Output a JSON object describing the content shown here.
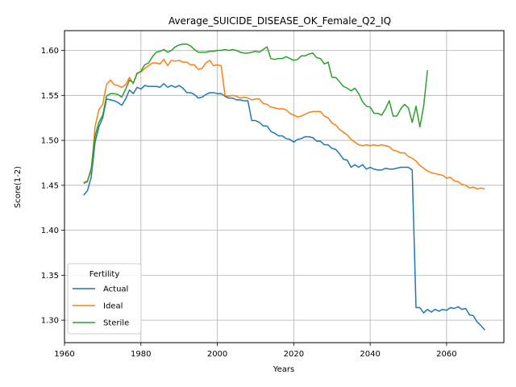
{
  "chart_data": {
    "type": "line",
    "title": "Average_SUICIDE_DISEASE_OK_Female_Q2_IQ",
    "xlabel": "Years",
    "ylabel": "Score(1-2)",
    "xlim": [
      1960,
      2075
    ],
    "ylim": [
      1.275,
      1.622
    ],
    "xticks": [
      1960,
      1980,
      2000,
      2020,
      2040,
      2060
    ],
    "yticks": [
      1.3,
      1.35,
      1.4,
      1.45,
      1.5,
      1.55,
      1.6
    ],
    "xtick_labels": [
      "1960",
      "1980",
      "2000",
      "2020",
      "2040",
      "2060"
    ],
    "ytick_labels": [
      "1.30",
      "1.35",
      "1.40",
      "1.45",
      "1.50",
      "1.55",
      "1.60"
    ],
    "grid": true,
    "legend": {
      "title": "Fertility",
      "placement": "lower-left"
    },
    "series": [
      {
        "name": "Actual",
        "color": "#1f77b4",
        "points": [
          [
            1965,
            1.439
          ],
          [
            1966,
            1.444
          ],
          [
            1967,
            1.459
          ],
          [
            1968,
            1.498
          ],
          [
            1969,
            1.515
          ],
          [
            1970,
            1.525
          ],
          [
            1971,
            1.546
          ],
          [
            1972,
            1.545
          ],
          [
            1973,
            1.544
          ],
          [
            1974,
            1.542
          ],
          [
            1975,
            1.539
          ],
          [
            1976,
            1.546
          ],
          [
            1977,
            1.556
          ],
          [
            1978,
            1.552
          ],
          [
            1979,
            1.559
          ],
          [
            1980,
            1.557
          ],
          [
            1981,
            1.561
          ],
          [
            1982,
            1.56
          ],
          [
            1983,
            1.56
          ],
          [
            1984,
            1.56
          ],
          [
            1985,
            1.559
          ],
          [
            1986,
            1.563
          ],
          [
            1987,
            1.559
          ],
          [
            1988,
            1.561
          ],
          [
            1989,
            1.559
          ],
          [
            1990,
            1.561
          ],
          [
            1991,
            1.558
          ],
          [
            1992,
            1.553
          ],
          [
            1993,
            1.553
          ],
          [
            1994,
            1.551
          ],
          [
            1995,
            1.547
          ],
          [
            1996,
            1.548
          ],
          [
            1997,
            1.551
          ],
          [
            1998,
            1.553
          ],
          [
            1999,
            1.553
          ],
          [
            2000,
            1.552
          ],
          [
            2001,
            1.552
          ],
          [
            2002,
            1.549
          ],
          [
            2003,
            1.547
          ],
          [
            2004,
            1.547
          ],
          [
            2005,
            1.545
          ],
          [
            2006,
            1.545
          ],
          [
            2007,
            1.544
          ],
          [
            2008,
            1.544
          ],
          [
            2009,
            1.522
          ],
          [
            2010,
            1.522
          ],
          [
            2011,
            1.52
          ],
          [
            2012,
            1.516
          ],
          [
            2013,
            1.516
          ],
          [
            2014,
            1.51
          ],
          [
            2015,
            1.508
          ],
          [
            2016,
            1.505
          ],
          [
            2017,
            1.505
          ],
          [
            2018,
            1.502
          ],
          [
            2019,
            1.501
          ],
          [
            2020,
            1.498
          ],
          [
            2021,
            1.501
          ],
          [
            2022,
            1.502
          ],
          [
            2023,
            1.504
          ],
          [
            2024,
            1.504
          ],
          [
            2025,
            1.503
          ],
          [
            2026,
            1.499
          ],
          [
            2027,
            1.499
          ],
          [
            2028,
            1.495
          ],
          [
            2029,
            1.495
          ],
          [
            2030,
            1.491
          ],
          [
            2031,
            1.49
          ],
          [
            2032,
            1.485
          ],
          [
            2033,
            1.479
          ],
          [
            2034,
            1.478
          ],
          [
            2035,
            1.47
          ],
          [
            2036,
            1.473
          ],
          [
            2037,
            1.47
          ],
          [
            2038,
            1.473
          ],
          [
            2039,
            1.468
          ],
          [
            2040,
            1.47
          ],
          [
            2041,
            1.468
          ],
          [
            2042,
            1.467
          ],
          [
            2043,
            1.467
          ],
          [
            2044,
            1.469
          ],
          [
            2045,
            1.468
          ],
          [
            2046,
            1.468
          ],
          [
            2047,
            1.469
          ],
          [
            2048,
            1.47
          ],
          [
            2049,
            1.47
          ],
          [
            2050,
            1.47
          ],
          [
            2051,
            1.467
          ],
          [
            2052,
            1.314
          ],
          [
            2053,
            1.314
          ],
          [
            2054,
            1.308
          ],
          [
            2055,
            1.312
          ],
          [
            2056,
            1.309
          ],
          [
            2057,
            1.312
          ],
          [
            2058,
            1.31
          ],
          [
            2059,
            1.312
          ],
          [
            2060,
            1.311
          ],
          [
            2061,
            1.314
          ],
          [
            2062,
            1.313
          ],
          [
            2063,
            1.315
          ],
          [
            2064,
            1.312
          ],
          [
            2065,
            1.313
          ],
          [
            2066,
            1.306
          ],
          [
            2067,
            1.305
          ],
          [
            2068,
            1.298
          ],
          [
            2069,
            1.294
          ],
          [
            2070,
            1.289
          ]
        ]
      },
      {
        "name": "Ideal",
        "color": "#ff7f0e",
        "points": [
          [
            1965,
            1.453
          ],
          [
            1966,
            1.455
          ],
          [
            1967,
            1.466
          ],
          [
            1968,
            1.515
          ],
          [
            1969,
            1.534
          ],
          [
            1970,
            1.54
          ],
          [
            1971,
            1.562
          ],
          [
            1972,
            1.567
          ],
          [
            1973,
            1.562
          ],
          [
            1974,
            1.561
          ],
          [
            1975,
            1.559
          ],
          [
            1976,
            1.562
          ],
          [
            1977,
            1.57
          ],
          [
            1978,
            1.563
          ],
          [
            1979,
            1.575
          ],
          [
            1980,
            1.576
          ],
          [
            1981,
            1.58
          ],
          [
            1982,
            1.583
          ],
          [
            1983,
            1.586
          ],
          [
            1984,
            1.586
          ],
          [
            1985,
            1.585
          ],
          [
            1986,
            1.59
          ],
          [
            1987,
            1.583
          ],
          [
            1988,
            1.589
          ],
          [
            1989,
            1.588
          ],
          [
            1990,
            1.589
          ],
          [
            1991,
            1.587
          ],
          [
            1992,
            1.587
          ],
          [
            1993,
            1.584
          ],
          [
            1994,
            1.584
          ],
          [
            1995,
            1.579
          ],
          [
            1996,
            1.58
          ],
          [
            1997,
            1.586
          ],
          [
            1998,
            1.589
          ],
          [
            1999,
            1.583
          ],
          [
            2000,
            1.584
          ],
          [
            2001,
            1.583
          ],
          [
            2002,
            1.55
          ],
          [
            2003,
            1.549
          ],
          [
            2004,
            1.55
          ],
          [
            2005,
            1.549
          ],
          [
            2006,
            1.547
          ],
          [
            2007,
            1.548
          ],
          [
            2008,
            1.547
          ],
          [
            2009,
            1.545
          ],
          [
            2010,
            1.546
          ],
          [
            2011,
            1.546
          ],
          [
            2012,
            1.541
          ],
          [
            2013,
            1.54
          ],
          [
            2014,
            1.537
          ],
          [
            2015,
            1.536
          ],
          [
            2016,
            1.535
          ],
          [
            2017,
            1.535
          ],
          [
            2018,
            1.534
          ],
          [
            2019,
            1.53
          ],
          [
            2020,
            1.528
          ],
          [
            2021,
            1.526
          ],
          [
            2022,
            1.527
          ],
          [
            2023,
            1.529
          ],
          [
            2024,
            1.531
          ],
          [
            2025,
            1.532
          ],
          [
            2026,
            1.532
          ],
          [
            2027,
            1.532
          ],
          [
            2028,
            1.527
          ],
          [
            2029,
            1.525
          ],
          [
            2030,
            1.519
          ],
          [
            2031,
            1.517
          ],
          [
            2032,
            1.512
          ],
          [
            2033,
            1.509
          ],
          [
            2034,
            1.506
          ],
          [
            2035,
            1.501
          ],
          [
            2036,
            1.498
          ],
          [
            2037,
            1.495
          ],
          [
            2038,
            1.494
          ],
          [
            2039,
            1.495
          ],
          [
            2040,
            1.494
          ],
          [
            2041,
            1.495
          ],
          [
            2042,
            1.494
          ],
          [
            2043,
            1.495
          ],
          [
            2044,
            1.494
          ],
          [
            2045,
            1.493
          ],
          [
            2046,
            1.489
          ],
          [
            2047,
            1.488
          ],
          [
            2048,
            1.486
          ],
          [
            2049,
            1.486
          ],
          [
            2050,
            1.482
          ],
          [
            2051,
            1.48
          ],
          [
            2052,
            1.477
          ],
          [
            2053,
            1.472
          ],
          [
            2054,
            1.469
          ],
          [
            2055,
            1.466
          ],
          [
            2056,
            1.464
          ],
          [
            2057,
            1.463
          ],
          [
            2058,
            1.462
          ],
          [
            2059,
            1.461
          ],
          [
            2060,
            1.458
          ],
          [
            2061,
            1.459
          ],
          [
            2062,
            1.455
          ],
          [
            2063,
            1.454
          ],
          [
            2064,
            1.451
          ],
          [
            2065,
            1.45
          ],
          [
            2066,
            1.447
          ],
          [
            2067,
            1.448
          ],
          [
            2068,
            1.446
          ],
          [
            2069,
            1.447
          ],
          [
            2070,
            1.446
          ]
        ]
      },
      {
        "name": "Sterile",
        "color": "#2ca02c",
        "points": [
          [
            1965,
            1.452
          ],
          [
            1966,
            1.454
          ],
          [
            1967,
            1.469
          ],
          [
            1968,
            1.505
          ],
          [
            1969,
            1.52
          ],
          [
            1970,
            1.528
          ],
          [
            1971,
            1.549
          ],
          [
            1972,
            1.552
          ],
          [
            1973,
            1.552
          ],
          [
            1974,
            1.551
          ],
          [
            1975,
            1.548
          ],
          [
            1976,
            1.557
          ],
          [
            1977,
            1.567
          ],
          [
            1978,
            1.564
          ],
          [
            1979,
            1.574
          ],
          [
            1980,
            1.577
          ],
          [
            1981,
            1.584
          ],
          [
            1982,
            1.586
          ],
          [
            1983,
            1.593
          ],
          [
            1984,
            1.598
          ],
          [
            1985,
            1.599
          ],
          [
            1986,
            1.601
          ],
          [
            1987,
            1.598
          ],
          [
            1988,
            1.6
          ],
          [
            1989,
            1.604
          ],
          [
            1990,
            1.606
          ],
          [
            1991,
            1.607
          ],
          [
            1992,
            1.607
          ],
          [
            1993,
            1.605
          ],
          [
            1994,
            1.601
          ],
          [
            1995,
            1.598
          ],
          [
            1996,
            1.598
          ],
          [
            1997,
            1.598
          ],
          [
            1998,
            1.599
          ],
          [
            1999,
            1.599
          ],
          [
            2000,
            1.6
          ],
          [
            2001,
            1.6
          ],
          [
            2002,
            1.601
          ],
          [
            2003,
            1.6
          ],
          [
            2004,
            1.601
          ],
          [
            2005,
            1.6
          ],
          [
            2006,
            1.598
          ],
          [
            2007,
            1.597
          ],
          [
            2008,
            1.597
          ],
          [
            2009,
            1.598
          ],
          [
            2010,
            1.599
          ],
          [
            2011,
            1.598
          ],
          [
            2012,
            1.601
          ],
          [
            2013,
            1.604
          ],
          [
            2014,
            1.591
          ],
          [
            2015,
            1.59
          ],
          [
            2016,
            1.591
          ],
          [
            2017,
            1.591
          ],
          [
            2018,
            1.593
          ],
          [
            2019,
            1.591
          ],
          [
            2020,
            1.589
          ],
          [
            2021,
            1.59
          ],
          [
            2022,
            1.594
          ],
          [
            2023,
            1.594
          ],
          [
            2024,
            1.596
          ],
          [
            2025,
            1.597
          ],
          [
            2026,
            1.592
          ],
          [
            2027,
            1.591
          ],
          [
            2028,
            1.585
          ],
          [
            2029,
            1.587
          ],
          [
            2030,
            1.57
          ],
          [
            2031,
            1.57
          ],
          [
            2032,
            1.565
          ],
          [
            2033,
            1.56
          ],
          [
            2034,
            1.558
          ],
          [
            2035,
            1.555
          ],
          [
            2036,
            1.558
          ],
          [
            2037,
            1.552
          ],
          [
            2038,
            1.543
          ],
          [
            2039,
            1.538
          ],
          [
            2040,
            1.537
          ],
          [
            2041,
            1.53
          ],
          [
            2042,
            1.53
          ],
          [
            2043,
            1.528
          ],
          [
            2044,
            1.535
          ],
          [
            2045,
            1.544
          ],
          [
            2046,
            1.527
          ],
          [
            2047,
            1.527
          ],
          [
            2048,
            1.535
          ],
          [
            2049,
            1.54
          ],
          [
            2050,
            1.536
          ],
          [
            2051,
            1.52
          ],
          [
            2052,
            1.538
          ],
          [
            2053,
            1.515
          ],
          [
            2054,
            1.538
          ],
          [
            2055,
            1.578
          ]
        ]
      }
    ]
  }
}
